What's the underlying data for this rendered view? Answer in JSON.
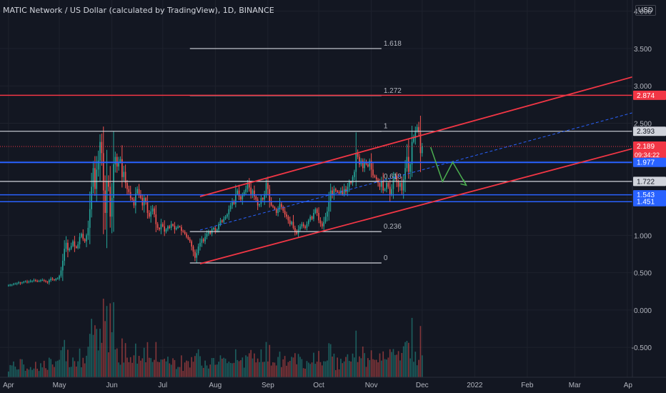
{
  "header": {
    "title": "MATIC Network / US Dollar (calculated by TradingView), 1D, BINANCE",
    "currency": "USD"
  },
  "chart_data": {
    "type": "candlestick",
    "x_axis": {
      "labels": [
        {
          "t": 0,
          "label": "Apr"
        },
        {
          "t": 30,
          "label": "May"
        },
        {
          "t": 61,
          "label": "Jun"
        },
        {
          "t": 91,
          "label": "Jul"
        },
        {
          "t": 122,
          "label": "Aug"
        },
        {
          "t": 153,
          "label": "Sep"
        },
        {
          "t": 183,
          "label": "Oct"
        },
        {
          "t": 214,
          "label": "Nov"
        },
        {
          "t": 244,
          "label": "Dec"
        },
        {
          "t": 275,
          "label": "2022"
        },
        {
          "t": 306,
          "label": "Feb"
        },
        {
          "t": 334,
          "label": "Mar"
        },
        {
          "t": 365,
          "label": "Ap"
        }
      ],
      "range": [
        -5,
        368
      ]
    },
    "y_axis": {
      "ticks": [
        "-0.500",
        "0.000",
        "0.500",
        "1.000",
        "1.500",
        "2.000",
        "2.500",
        "3.000",
        "3.500",
        "4.000"
      ],
      "range": [
        -0.9,
        4.15
      ]
    },
    "price_labels": [
      {
        "value": 2.874,
        "label": "2.874",
        "color": "#f23645"
      },
      {
        "value": 2.393,
        "label": "2.393",
        "color": "#b2b5be"
      },
      {
        "value": 2.189,
        "label": "2.189",
        "sub": "09:34:22",
        "color": "#f23645"
      },
      {
        "value": 1.977,
        "label": "1.977",
        "color": "#2962ff"
      },
      {
        "value": 1.722,
        "label": "1.722",
        "color": "#b2b5be"
      },
      {
        "value": 1.543,
        "label": "1.543",
        "color": "#2962ff"
      },
      {
        "value": 1.451,
        "label": "1.451",
        "color": "#2962ff"
      }
    ],
    "horizontal_lines": [
      {
        "value": 2.874,
        "color": "#f23645",
        "width": 1.5
      },
      {
        "value": 2.393,
        "color": "#d1d4dc",
        "width": 1.2
      },
      {
        "value": 1.977,
        "color": "#2962ff",
        "width": 2
      },
      {
        "value": 1.722,
        "color": "#d1d4dc",
        "width": 1.2
      },
      {
        "value": 1.543,
        "color": "#2962ff",
        "width": 1.5
      },
      {
        "value": 1.451,
        "color": "#2962ff",
        "width": 1.5
      }
    ],
    "current_price_line": {
      "value": 2.189,
      "color": "#f23645"
    },
    "fib_levels": [
      {
        "level": "1.618",
        "value": 3.5
      },
      {
        "level": "1.272",
        "value": 2.87
      },
      {
        "level": "1",
        "value": 2.393
      },
      {
        "level": "0.618",
        "value": 1.722
      },
      {
        "level": "0.236",
        "value": 1.05
      },
      {
        "level": "0",
        "value": 0.63
      }
    ],
    "fib_range": {
      "t_start": 107,
      "t_end": 220
    },
    "channel": {
      "upper": {
        "t1": 113,
        "v1": 1.52,
        "t2": 368,
        "v2": 3.12,
        "color": "#f23645"
      },
      "lower": {
        "t1": 113,
        "v1": 0.62,
        "t2": 368,
        "v2": 2.16,
        "color": "#f23645"
      },
      "middle": {
        "t1": 113,
        "v1": 1.07,
        "t2": 368,
        "v2": 2.64,
        "color": "#2962ff"
      }
    },
    "projection_path": [
      {
        "t": 249,
        "v": 2.18
      },
      {
        "t": 256,
        "v": 1.72
      },
      {
        "t": 262,
        "v": 1.98
      },
      {
        "t": 270,
        "v": 1.67
      }
    ],
    "ohlc_closes": [
      0.33,
      0.34,
      0.34,
      0.35,
      0.35,
      0.36,
      0.37,
      0.36,
      0.37,
      0.38,
      0.38,
      0.37,
      0.38,
      0.39,
      0.39,
      0.4,
      0.39,
      0.38,
      0.39,
      0.4,
      0.4,
      0.39,
      0.38,
      0.37,
      0.4,
      0.42,
      0.41,
      0.4,
      0.42,
      0.42,
      0.46,
      0.53,
      0.66,
      0.82,
      0.9,
      0.8,
      0.82,
      0.86,
      0.92,
      0.85,
      0.83,
      0.88,
      0.98,
      1.02,
      0.95,
      0.92,
      1.0,
      1.1,
      1.35,
      1.65,
      1.9,
      1.62,
      1.88,
      2.0,
      2.25,
      2.1,
      1.6,
      1.3,
      1.72,
      1.65,
      1.25,
      1.5,
      1.95,
      2.05,
      1.92,
      1.98,
      2.02,
      1.78,
      1.85,
      1.7,
      1.62,
      1.58,
      1.5,
      1.48,
      1.4,
      1.56,
      1.62,
      1.55,
      1.5,
      1.4,
      1.5,
      1.45,
      1.3,
      1.25,
      1.32,
      1.36,
      1.28,
      1.15,
      1.1,
      1.08,
      1.15,
      1.12,
      1.05,
      1.08,
      1.12,
      1.1,
      1.15,
      1.13,
      1.08,
      1.1,
      1.12,
      1.11,
      1.06,
      1.05,
      1.02,
      0.98,
      0.95,
      0.92,
      0.85,
      0.78,
      0.7,
      0.76,
      0.85,
      0.9,
      0.95,
      0.92,
      0.98,
      1.02,
      1.05,
      1.02,
      1.08,
      1.1,
      1.05,
      1.08,
      1.15,
      1.2,
      1.18,
      1.22,
      1.25,
      1.28,
      1.35,
      1.4,
      1.45,
      1.42,
      1.55,
      1.6,
      1.52,
      1.48,
      1.55,
      1.58,
      1.62,
      1.7,
      1.64,
      1.55,
      1.6,
      1.52,
      1.48,
      1.4,
      1.42,
      1.5,
      1.48,
      1.55,
      1.7,
      1.62,
      1.45,
      1.4,
      1.38,
      1.35,
      1.3,
      1.35,
      1.42,
      1.38,
      1.33,
      1.28,
      1.25,
      1.2,
      1.15,
      1.18,
      1.1,
      1.05,
      1.02,
      1.08,
      1.12,
      1.15,
      1.12,
      1.1,
      1.15,
      1.2,
      1.25,
      1.22,
      1.3,
      1.35,
      1.3,
      1.2,
      1.16,
      1.12,
      1.18,
      1.25,
      1.32,
      1.45,
      1.6,
      1.55,
      1.62,
      1.6,
      1.58,
      1.56,
      1.6,
      1.55,
      1.62,
      1.58,
      1.65,
      1.72,
      1.7,
      1.78,
      1.85,
      2.1,
      2.05,
      1.95,
      2.0,
      1.9,
      1.98,
      1.95,
      1.92,
      2.0,
      1.88,
      1.8,
      1.78,
      1.75,
      1.7,
      1.65,
      1.72,
      1.6,
      1.62,
      1.7,
      1.65,
      1.55,
      1.62,
      1.75,
      1.8,
      1.72,
      1.65,
      1.7,
      1.6,
      1.75,
      1.9,
      2.05,
      1.85,
      1.95,
      2.25,
      2.3,
      2.4,
      2.45,
      2.38,
      2.1,
      2.19
    ],
    "volume_max": 1.0
  }
}
